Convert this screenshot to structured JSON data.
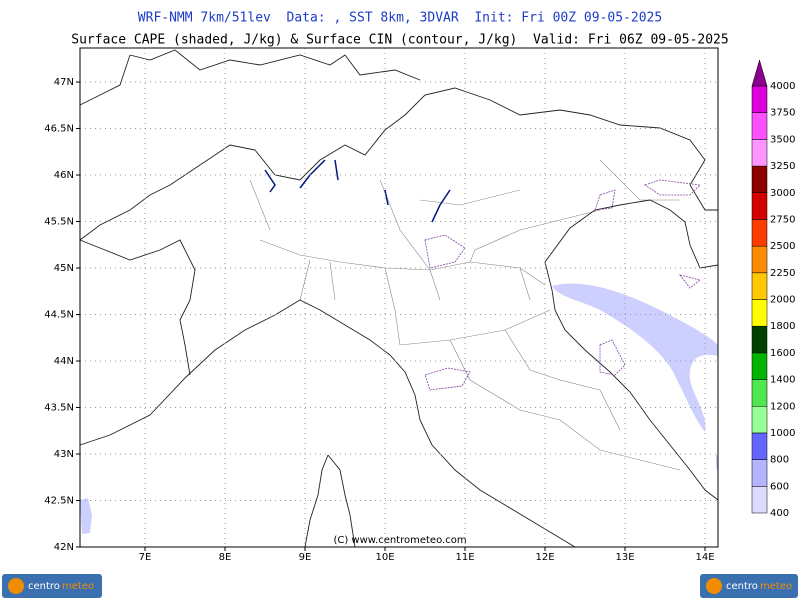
{
  "header": {
    "title": "WRF-NMM 7km/51lev  Data: , SST 8km, 3DVAR  Init: Fri 00Z 09-05-2025",
    "subtitle": "Surface CAPE (shaded, J/kg) & Surface CIN (contour, J/kg)  Valid: Fri 06Z 09-05-2025"
  },
  "map": {
    "xlim": [
      6.1875,
      14.1625
    ],
    "ylim": [
      42,
      47.366
    ],
    "xticks": [
      {
        "value": 7,
        "label": "7E"
      },
      {
        "value": 8,
        "label": "8E"
      },
      {
        "value": 9,
        "label": "9E"
      },
      {
        "value": 10,
        "label": "10E"
      },
      {
        "value": 11,
        "label": "11E"
      },
      {
        "value": 12,
        "label": "12E"
      },
      {
        "value": 13,
        "label": "13E"
      },
      {
        "value": 14,
        "label": "14E"
      }
    ],
    "yticks": [
      {
        "value": 42,
        "label": "42N"
      },
      {
        "value": 42.5,
        "label": "42.5N"
      },
      {
        "value": 43,
        "label": "43N"
      },
      {
        "value": 43.5,
        "label": "43.5N"
      },
      {
        "value": 44,
        "label": "44N"
      },
      {
        "value": 44.5,
        "label": "44.5N"
      },
      {
        "value": 45,
        "label": "45N"
      },
      {
        "value": 45.5,
        "label": "45.5N"
      },
      {
        "value": 46,
        "label": "46N"
      },
      {
        "value": 46.5,
        "label": "46.5N"
      },
      {
        "value": 47,
        "label": "47N"
      }
    ],
    "copyright": "(C) www.centrometeo.com"
  },
  "colorbar": {
    "levels": [
      400,
      600,
      800,
      1000,
      1200,
      1400,
      1600,
      1800,
      2000,
      2250,
      2500,
      2750,
      3000,
      3250,
      3500,
      3750,
      4000
    ],
    "colors": [
      "#dcdcff",
      "#b4b4ff",
      "#6464ff",
      "#96ff96",
      "#50e650",
      "#00b400",
      "#004000",
      "#ffff00",
      "#ffc800",
      "#ff8c00",
      "#ff3c00",
      "#d20000",
      "#8c0000",
      "#ff96ff",
      "#ff50ff",
      "#dc00dc",
      "#8c008c"
    ]
  },
  "logos": {
    "left": [
      "centro",
      "meteo"
    ],
    "right": [
      "centro",
      "meteo"
    ]
  }
}
